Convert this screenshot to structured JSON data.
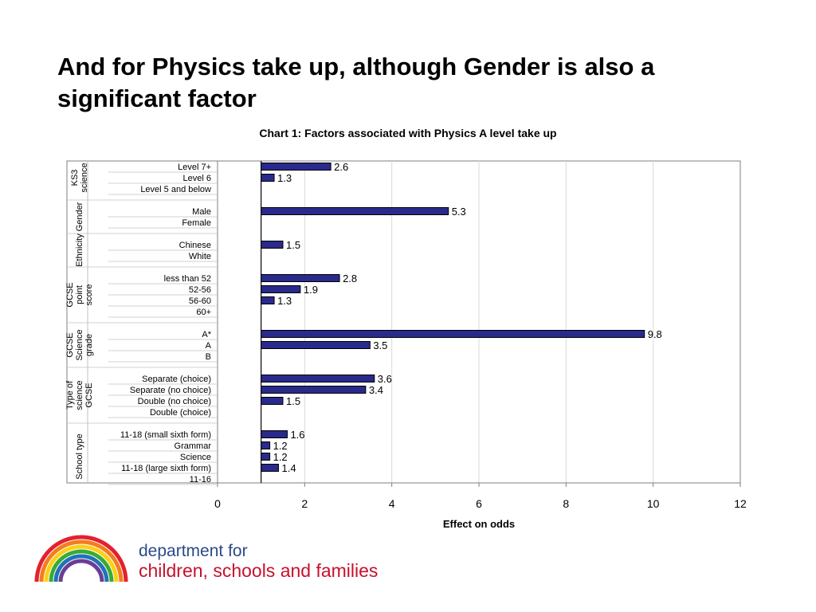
{
  "slide": {
    "title": "And for Physics take up, although Gender is also a significant factor"
  },
  "chart_data": {
    "type": "bar",
    "orientation": "horizontal",
    "title": "Chart 1: Factors associated with Physics A level take up",
    "xlabel": "Effect on odds",
    "ylabel": "",
    "xlim": [
      0,
      12
    ],
    "xticks": [
      0,
      2,
      4,
      6,
      8,
      10,
      12
    ],
    "baseline": 1,
    "grid": true,
    "legend": "none",
    "bar_color": "#2a2a8c",
    "groups": [
      {
        "name": [
          "KS3",
          "science"
        ],
        "categories": [
          {
            "label": "Level 7+",
            "value": 2.6,
            "value_label": "2.6"
          },
          {
            "label": "Level 6",
            "value": 1.3,
            "value_label": "1.3"
          },
          {
            "label": "Level 5 and below",
            "value": null,
            "value_label": ""
          }
        ]
      },
      {
        "name": [
          "Gender"
        ],
        "categories": [
          {
            "label": "Male",
            "value": 5.3,
            "value_label": "5.3"
          },
          {
            "label": "Female",
            "value": null,
            "value_label": ""
          }
        ]
      },
      {
        "name": [
          "Ethnicity"
        ],
        "categories": [
          {
            "label": "Chinese",
            "value": 1.5,
            "value_label": "1.5"
          },
          {
            "label": "White",
            "value": null,
            "value_label": ""
          }
        ]
      },
      {
        "name": [
          "GCSE",
          "point",
          "score"
        ],
        "categories": [
          {
            "label": "less than 52",
            "value": 2.8,
            "value_label": "2.8"
          },
          {
            "label": "52-56",
            "value": 1.9,
            "value_label": "1.9"
          },
          {
            "label": "56-60",
            "value": 1.3,
            "value_label": "1.3"
          },
          {
            "label": "60+",
            "value": null,
            "value_label": ""
          }
        ]
      },
      {
        "name": [
          "GCSE",
          "Science",
          "grade"
        ],
        "categories": [
          {
            "label": "A*",
            "value": 9.8,
            "value_label": "9.8"
          },
          {
            "label": "A",
            "value": 3.5,
            "value_label": "3.5"
          },
          {
            "label": "B",
            "value": null,
            "value_label": ""
          }
        ]
      },
      {
        "name": [
          "Type of",
          "science",
          "GCSE"
        ],
        "categories": [
          {
            "label": "Separate (choice)",
            "value": 3.6,
            "value_label": "3.6"
          },
          {
            "label": "Separate (no choice)",
            "value": 3.4,
            "value_label": "3.4"
          },
          {
            "label": "Double (no choice)",
            "value": 1.5,
            "value_label": "1.5"
          },
          {
            "label": "Double (choice)",
            "value": null,
            "value_label": ""
          }
        ]
      },
      {
        "name": [
          "School type"
        ],
        "categories": [
          {
            "label": "11-18 (small sixth form)",
            "value": 1.6,
            "value_label": "1.6"
          },
          {
            "label": "Grammar",
            "value": 1.2,
            "value_label": "1.2"
          },
          {
            "label": "Science",
            "value": 1.2,
            "value_label": "1.2"
          },
          {
            "label": "11-18 (large sixth form)",
            "value": 1.4,
            "value_label": "1.4"
          },
          {
            "label": "11-16",
            "value": null,
            "value_label": ""
          }
        ]
      }
    ]
  },
  "logo": {
    "line1": "department for",
    "line2": "children, schools and families",
    "rainbow_colors": [
      "#e4212c",
      "#f47c20",
      "#fcd116",
      "#3aaa35",
      "#1f73b7",
      "#6c3c97"
    ]
  }
}
